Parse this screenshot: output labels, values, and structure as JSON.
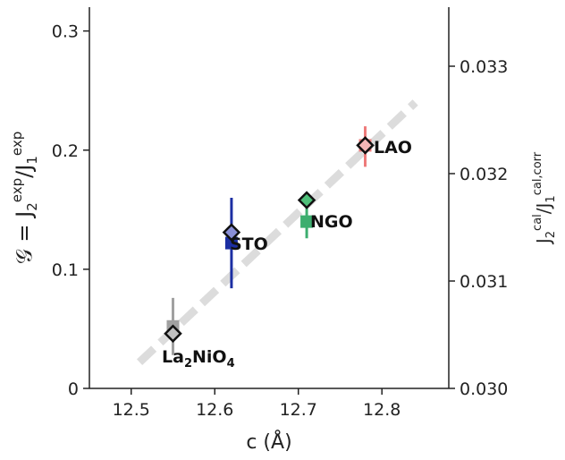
{
  "chart_data": {
    "type": "scatter",
    "xlabel": "c (Å)",
    "ylabel_left": {
      "main": "𝒢 = J",
      "sub1": "2",
      "sup1": "exp",
      "mid": "/J",
      "sub2": "1",
      "sup2": "exp"
    },
    "ylabel_right": {
      "main": "J",
      "sub1": "2",
      "sup1": "cal",
      "mid": "/J",
      "sub2": "1",
      "sup2": "cal,corr"
    },
    "xlim": [
      12.45,
      12.88
    ],
    "ylim_left": [
      0,
      0.32
    ],
    "ylim_right": [
      0.03,
      0.03355
    ],
    "x_ticks": [
      "12.5",
      "12.6",
      "12.7",
      "12.8"
    ],
    "y_left_ticks": [
      "0",
      "0.1",
      "0.2",
      "0.3"
    ],
    "y_right_ticks": [
      "0.030",
      "0.031",
      "0.032",
      "0.033"
    ],
    "trend_line": {
      "x": [
        12.51,
        12.84
      ],
      "y": [
        0.022,
        0.24
      ],
      "color": "#dcdcdc",
      "style": "dashed"
    },
    "series": [
      {
        "label": "La2NiO4",
        "x": 12.55,
        "y_square": 0.052,
        "y_diamond": 0.046,
        "err": [
          0.028,
          0.076
        ],
        "color": "#a0a0a0",
        "diamond_fill": "#c0c0c0"
      },
      {
        "label": "STO",
        "x": 12.62,
        "y_square": 0.122,
        "y_diamond": 0.131,
        "err": [
          0.084,
          0.16
        ],
        "color": "#1c2fa3",
        "diamond_fill": "#8a8fd6"
      },
      {
        "label": "NGO",
        "x": 12.71,
        "y_square": 0.14,
        "y_diamond": 0.158,
        "err": [
          0.126,
          0.152
        ],
        "color": "#3dae6f",
        "diamond_fill": "#4fc07a"
      },
      {
        "label": "LAO",
        "x": 12.78,
        "y_square": 0.204,
        "y_diamond": 0.204,
        "err": [
          0.186,
          0.22
        ],
        "color": "#ee7b7b",
        "diamond_fill": "#f3b6b6"
      }
    ],
    "annotations": [
      {
        "text": "LAO"
      },
      {
        "text": "NGO"
      },
      {
        "text": "STO"
      },
      {
        "text": "La",
        "sub": "2",
        "text2": "NiO",
        "sub2": "4"
      }
    ]
  }
}
